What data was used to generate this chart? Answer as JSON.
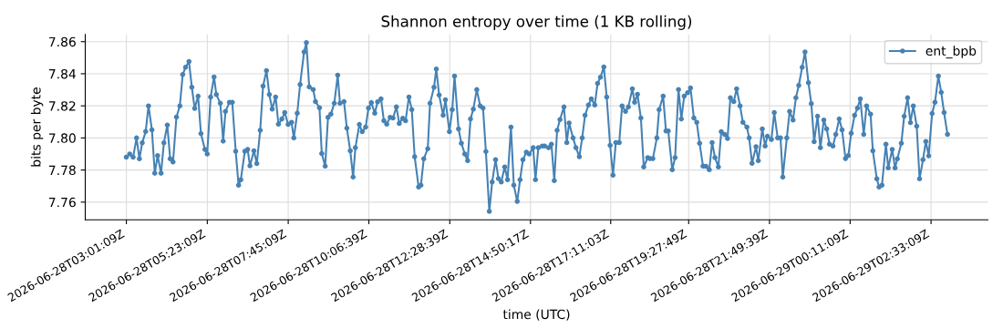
{
  "chart_data": {
    "type": "line",
    "title": "Shannon entropy over time (1 KB rolling)",
    "xlabel": "time (UTC)",
    "ylabel": "bits per byte",
    "x": [
      "2026-06-28T03:01",
      "2026-06-28T03:07",
      "2026-06-28T03:13",
      "2026-06-28T03:19",
      "2026-06-28T03:24",
      "2026-06-28T03:29",
      "2026-06-28T03:35",
      "2026-06-28T03:40",
      "2026-06-28T03:46",
      "2026-06-28T03:51",
      "2026-06-28T03:56",
      "2026-06-28T04:02",
      "2026-06-28T04:07",
      "2026-06-28T04:13",
      "2026-06-28T04:18",
      "2026-06-28T04:23",
      "2026-06-28T04:29",
      "2026-06-28T04:35",
      "2026-06-28T04:40",
      "2026-06-28T04:45",
      "2026-06-28T04:51",
      "2026-06-28T04:56",
      "2026-06-28T05:01",
      "2026-06-28T05:07",
      "2026-06-28T05:12",
      "2026-06-28T05:19",
      "2026-06-28T05:23",
      "2026-06-28T05:29",
      "2026-06-28T05:35",
      "2026-06-28T05:39",
      "2026-06-28T05:46",
      "2026-06-28T05:51",
      "2026-06-28T05:55",
      "2026-06-28T06:02",
      "2026-06-28T06:07",
      "2026-06-28T06:13",
      "2026-06-28T06:18",
      "2026-06-28T06:22",
      "2026-06-28T06:29",
      "2026-06-28T06:34",
      "2026-06-28T06:38",
      "2026-06-28T06:45",
      "2026-06-28T06:50",
      "2026-06-28T06:56",
      "2026-06-28T07:01",
      "2026-06-28T07:07",
      "2026-06-28T07:12",
      "2026-06-28T07:17",
      "2026-06-28T07:23",
      "2026-06-28T07:28",
      "2026-06-28T07:34",
      "2026-06-28T07:39",
      "2026-06-28T07:45",
      "2026-06-28T07:51",
      "2026-06-28T07:55",
      "2026-06-28T08:01",
      "2026-06-28T08:06",
      "2026-06-28T08:13",
      "2026-06-28T08:17",
      "2026-06-28T08:22",
      "2026-06-28T08:29",
      "2026-06-28T08:33",
      "2026-06-28T08:40",
      "2026-06-28T08:44",
      "2026-06-28T08:50",
      "2026-06-28T08:55",
      "2026-06-28T09:00",
      "2026-06-28T09:06",
      "2026-06-28T09:12",
      "2026-06-28T09:16",
      "2026-06-28T09:23",
      "2026-06-28T09:28",
      "2026-06-28T09:34",
      "2026-06-28T09:39",
      "2026-06-28T09:43",
      "2026-06-28T09:50",
      "2026-06-28T09:55",
      "2026-06-28T10:01",
      "2026-06-28T10:06",
      "2026-06-28T10:11",
      "2026-06-28T10:17",
      "2026-06-28T10:22",
      "2026-06-28T10:28",
      "2026-06-28T10:33",
      "2026-06-28T10:38",
      "2026-06-28T10:44",
      "2026-06-28T10:49",
      "2026-06-28T10:55",
      "2026-06-28T11:00",
      "2026-06-28T11:06",
      "2026-06-28T11:11",
      "2026-06-28T11:17",
      "2026-06-28T11:22",
      "2026-06-28T11:27",
      "2026-06-28T11:34",
      "2026-06-28T11:38",
      "2026-06-28T11:43",
      "2026-06-28T11:50",
      "2026-06-28T11:54",
      "2026-06-28T12:01",
      "2026-06-28T12:05",
      "2026-06-28T12:10",
      "2026-06-28T12:17",
      "2026-06-28T12:21",
      "2026-06-28T12:28",
      "2026-06-28T12:33",
      "2026-06-28T12:37",
      "2026-06-28T12:44",
      "2026-06-28T12:49",
      "2026-06-28T12:55",
      "2026-06-28T13:00",
      "2026-06-28T13:05",
      "2026-06-28T13:10",
      "2026-06-28T13:16",
      "2026-06-28T13:22",
      "2026-06-28T13:27",
      "2026-06-28T13:32",
      "2026-06-28T13:38",
      "2026-06-28T13:43",
      "2026-06-28T13:49",
      "2026-06-28T13:54",
      "2026-06-28T13:59",
      "2026-06-28T14:05",
      "2026-06-28T14:10",
      "2026-06-28T14:16",
      "2026-06-28T14:21",
      "2026-06-28T14:27",
      "2026-06-28T14:32",
      "2026-06-28T14:37",
      "2026-06-28T14:43",
      "2026-06-28T14:48",
      "2026-06-28T14:55",
      "2026-06-28T14:59",
      "2026-06-28T15:04",
      "2026-06-28T15:11",
      "2026-06-28T15:15",
      "2026-06-28T15:22",
      "2026-06-28T15:27",
      "2026-06-28T15:32",
      "2026-06-28T15:37",
      "2026-06-28T15:42",
      "2026-06-28T15:49",
      "2026-06-28T15:54",
      "2026-06-28T15:58",
      "2026-06-28T16:05",
      "2026-06-28T16:10",
      "2026-06-28T16:16",
      "2026-06-28T16:21",
      "2026-06-28T16:26",
      "2026-06-28T16:32",
      "2026-06-28T16:37",
      "2026-06-28T16:43",
      "2026-06-28T16:48",
      "2026-06-28T16:53",
      "2026-06-28T16:59",
      "2026-06-28T17:04",
      "2026-06-28T17:10",
      "2026-06-28T17:15",
      "2026-06-28T17:20",
      "2026-06-28T17:26",
      "2026-06-28T17:31",
      "2026-06-28T17:37",
      "2026-06-28T17:42",
      "2026-06-28T17:49",
      "2026-06-28T17:53",
      "2026-06-28T17:58",
      "2026-06-28T18:04",
      "2026-06-28T18:09",
      "2026-06-28T18:16",
      "2026-06-28T18:20",
      "2026-06-28T18:25",
      "2026-06-28T18:32",
      "2026-06-28T18:36",
      "2026-06-28T18:43",
      "2026-06-28T18:48",
      "2026-06-28T18:52",
      "2026-06-28T18:59",
      "2026-06-28T19:04",
      "2026-06-28T19:10",
      "2026-06-28T19:15",
      "2026-06-28T19:20",
      "2026-06-28T19:26",
      "2026-06-28T19:31",
      "2026-06-28T19:37",
      "2026-06-28T19:42",
      "2026-06-28T19:47",
      "2026-06-28T19:53",
      "2026-06-28T19:58",
      "2026-06-28T20:04",
      "2026-06-28T20:09",
      "2026-06-28T20:14",
      "2026-06-28T20:20",
      "2026-06-28T20:25",
      "2026-06-28T20:31",
      "2026-06-28T20:36",
      "2026-06-28T20:41",
      "2026-06-28T20:47",
      "2026-06-28T20:52",
      "2026-06-28T20:58",
      "2026-06-28T21:03",
      "2026-06-28T21:10",
      "2026-06-28T21:14",
      "2026-06-28T21:19",
      "2026-06-28T21:26",
      "2026-06-28T21:30",
      "2026-06-28T21:37",
      "2026-06-28T21:42",
      "2026-06-28T21:46",
      "2026-06-28T21:53",
      "2026-06-28T21:58",
      "2026-06-28T22:04",
      "2026-06-28T22:09",
      "2026-06-28T22:13",
      "2026-06-28T22:20",
      "2026-06-28T22:25",
      "2026-06-28T22:31",
      "2026-06-28T22:36",
      "2026-06-28T22:41",
      "2026-06-28T22:47",
      "2026-06-28T22:52",
      "2026-06-28T22:58",
      "2026-06-28T23:03",
      "2026-06-28T23:08",
      "2026-06-28T23:14",
      "2026-06-28T23:19",
      "2026-06-28T23:25",
      "2026-06-28T23:30",
      "2026-06-28T23:35",
      "2026-06-28T23:41",
      "2026-06-28T23:46",
      "2026-06-28T23:52",
      "2026-06-28T23:57",
      "2026-06-29T00:03",
      "2026-06-29T00:08",
      "2026-06-29T00:13",
      "2026-06-29T00:19",
      "2026-06-29T00:24",
      "2026-06-29T00:29",
      "2026-06-29T00:35",
      "2026-06-29T00:40",
      "2026-06-29T00:47",
      "2026-06-29T00:51",
      "2026-06-29T00:58",
      "2026-06-29T01:02",
      "2026-06-29T01:07",
      "2026-06-29T01:14",
      "2026-06-29T01:18",
      "2026-06-29T01:25",
      "2026-06-29T01:30",
      "2026-06-29T01:34",
      "2026-06-29T01:41",
      "2026-06-29T01:46",
      "2026-06-29T01:52",
      "2026-06-29T01:57",
      "2026-06-29T02:02",
      "2026-06-29T02:08",
      "2026-06-29T02:13",
      "2026-06-29T02:19",
      "2026-06-29T02:24",
      "2026-06-29T02:29",
      "2026-06-29T02:35",
      "2026-06-29T02:40",
      "2026-06-29T02:46",
      "2026-06-29T02:51",
      "2026-06-29T02:56",
      "2026-06-29T03:02"
    ],
    "series": [
      {
        "name": "ent_bpb",
        "color": "#4682b4",
        "values": [
          7.788,
          7.79,
          7.788,
          7.8,
          7.787,
          7.797,
          7.804,
          7.82,
          7.805,
          7.778,
          7.789,
          7.778,
          7.797,
          7.808,
          7.787,
          7.785,
          7.813,
          7.82,
          7.8395,
          7.844,
          7.8476,
          7.8316,
          7.8184,
          7.826,
          7.8027,
          7.7928,
          7.79,
          7.8255,
          7.838,
          7.827,
          7.8216,
          7.798,
          7.8165,
          7.8222,
          7.8222,
          7.7917,
          7.7706,
          7.774,
          7.7917,
          7.7928,
          7.7826,
          7.792,
          7.784,
          7.8048,
          7.8323,
          7.842,
          7.827,
          7.818,
          7.8255,
          7.8086,
          7.8118,
          7.8158,
          7.8084,
          7.8097,
          7.8,
          7.8154,
          7.8333,
          7.8536,
          7.8594,
          7.8318,
          7.8302,
          7.8227,
          7.8188,
          7.7903,
          7.7824,
          7.8129,
          7.8148,
          7.8216,
          7.8391,
          7.8216,
          7.8227,
          7.8061,
          7.792,
          7.7756,
          7.7939,
          7.8084,
          7.8039,
          7.8067,
          7.8186,
          7.822,
          7.8154,
          7.8225,
          7.8244,
          7.8107,
          7.8086,
          7.8129,
          7.8124,
          7.8193,
          7.809,
          7.8122,
          7.8107,
          7.8255,
          7.8176,
          7.7883,
          7.7694,
          7.7706,
          7.787,
          7.7933,
          7.8216,
          7.8316,
          7.8429,
          7.8267,
          7.8141,
          7.8238,
          7.8039,
          7.8176,
          7.8385,
          7.8056,
          7.7967,
          7.79,
          7.7858,
          7.8118,
          7.818,
          7.8301,
          7.82,
          7.8186,
          7.7915,
          7.7542,
          7.7725,
          7.7864,
          7.7747,
          7.7725,
          7.7819,
          7.774,
          7.8067,
          7.7706,
          7.7604,
          7.774,
          7.7864,
          7.7911,
          7.79,
          7.7939,
          7.774,
          7.7939,
          7.795,
          7.795,
          7.7939,
          7.7961,
          7.7734,
          7.8048,
          7.8114,
          7.8193,
          7.7971,
          7.8093,
          7.8,
          7.7939,
          7.7883,
          7.8,
          7.8141,
          7.8205,
          7.8244,
          7.8205,
          7.834,
          7.8378,
          7.8442,
          7.8255,
          7.7954,
          7.7768,
          7.7971,
          7.7971,
          7.82,
          7.8165,
          7.8193,
          7.8306,
          7.8222,
          7.8272,
          7.8124,
          7.7819,
          7.7877,
          7.7871,
          7.7871,
          7.8,
          7.8176,
          7.8261,
          7.8043,
          7.8043,
          7.7802,
          7.7877,
          7.8302,
          7.8118,
          7.8261,
          7.8282,
          7.8312,
          7.8124,
          7.8097,
          7.7967,
          7.7824,
          7.7823,
          7.7802,
          7.7971,
          7.7877,
          7.7819,
          7.8039,
          7.8022,
          7.7996,
          7.825,
          7.8227,
          7.8306,
          7.82,
          7.8097,
          7.8067,
          7.8,
          7.7842,
          7.7945,
          7.7858,
          7.8056,
          7.795,
          7.801,
          7.799,
          7.8158,
          7.8,
          7.8,
          7.7756,
          7.8,
          7.8165,
          7.8112,
          7.825,
          7.8327,
          7.844,
          7.8536,
          7.8344,
          7.8214,
          7.7977,
          7.8135,
          7.7939,
          7.8112,
          7.8056,
          7.7961,
          7.795,
          7.8022,
          7.8118,
          7.805,
          7.7871,
          7.789,
          7.8029,
          7.8141,
          7.8186,
          7.8244,
          7.8022,
          7.82,
          7.8148,
          7.792,
          7.7745,
          7.7694,
          7.7706,
          7.7961,
          7.7813,
          7.7928,
          7.7813,
          7.787,
          7.7967,
          7.8135,
          7.825,
          7.8095,
          7.82,
          7.8073,
          7.7745,
          7.7864,
          7.7978,
          7.7888,
          7.8152,
          7.8222,
          7.8385,
          7.8284,
          7.8158,
          7.8022
        ]
      }
    ],
    "xlim": [
      "2026-06-28T01:49",
      "2026-06-29T04:13"
    ],
    "xticks": [
      {
        "value": "2026-06-28T03:01:09",
        "label": "2026-06-28T03:01:09Z"
      },
      {
        "value": "2026-06-28T05:23:09",
        "label": "2026-06-28T05:23:09Z"
      },
      {
        "value": "2026-06-28T07:45:09",
        "label": "2026-06-28T07:45:09Z"
      },
      {
        "value": "2026-06-28T10:06:39",
        "label": "2026-06-28T10:06:39Z"
      },
      {
        "value": "2026-06-28T12:28:39",
        "label": "2026-06-28T12:28:39Z"
      },
      {
        "value": "2026-06-28T14:50:17",
        "label": "2026-06-28T14:50:17Z"
      },
      {
        "value": "2026-06-28T17:11:03",
        "label": "2026-06-28T17:11:03Z"
      },
      {
        "value": "2026-06-28T19:27:49",
        "label": "2026-06-28T19:27:49Z"
      },
      {
        "value": "2026-06-28T21:49:39",
        "label": "2026-06-28T21:49:39Z"
      },
      {
        "value": "2026-06-29T00:11:09",
        "label": "2026-06-29T00:11:09Z"
      },
      {
        "value": "2026-06-29T02:33:09",
        "label": "2026-06-29T02:33:09Z"
      }
    ],
    "ylim": [
      7.749,
      7.8645
    ],
    "yticks": [
      {
        "value": 7.76,
        "label": "7.76"
      },
      {
        "value": 7.78,
        "label": "7.78"
      },
      {
        "value": 7.8,
        "label": "7.80"
      },
      {
        "value": 7.82,
        "label": "7.82"
      },
      {
        "value": 7.84,
        "label": "7.84"
      },
      {
        "value": 7.86,
        "label": "7.86"
      }
    ],
    "grid": true,
    "legend": "top right",
    "marker": "circle",
    "line_style": "solid"
  }
}
